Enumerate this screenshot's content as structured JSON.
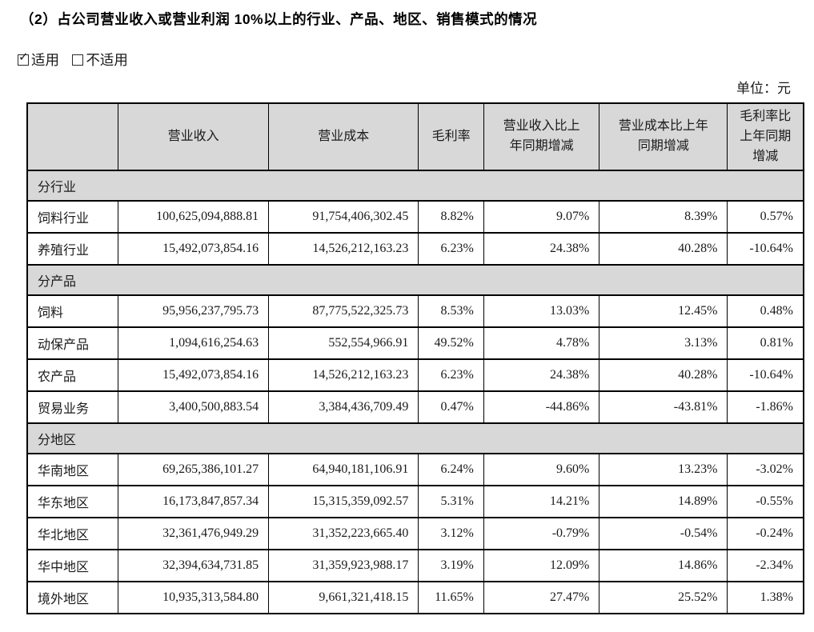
{
  "title": "（2）占公司营业收入或营业利润 10%以上的行业、产品、地区、销售模式的情况",
  "applicability": {
    "applicable_label": "适用",
    "not_applicable_label": "不适用",
    "applicable_checked": true,
    "check_glyph": "✓"
  },
  "unit_label": "单位：元",
  "table": {
    "columns": [
      "",
      "营业收入",
      "营业成本",
      "毛利率",
      "营业收入比上\n年同期增减",
      "营业成本比上年\n同期增减",
      "毛利率比\n上年同期\n增减"
    ],
    "sections": [
      {
        "label": "分行业",
        "rows": [
          {
            "label": "饲料行业",
            "values": [
              "100,625,094,888.81",
              "91,754,406,302.45",
              "8.82%",
              "9.07%",
              "8.39%",
              "0.57%"
            ]
          },
          {
            "label": "养殖行业",
            "values": [
              "15,492,073,854.16",
              "14,526,212,163.23",
              "6.23%",
              "24.38%",
              "40.28%",
              "-10.64%"
            ]
          }
        ]
      },
      {
        "label": "分产品",
        "rows": [
          {
            "label": "饲料",
            "values": [
              "95,956,237,795.73",
              "87,775,522,325.73",
              "8.53%",
              "13.03%",
              "12.45%",
              "0.48%"
            ]
          },
          {
            "label": "动保产品",
            "values": [
              "1,094,616,254.63",
              "552,554,966.91",
              "49.52%",
              "4.78%",
              "3.13%",
              "0.81%"
            ]
          },
          {
            "label": "农产品",
            "values": [
              "15,492,073,854.16",
              "14,526,212,163.23",
              "6.23%",
              "24.38%",
              "40.28%",
              "-10.64%"
            ]
          },
          {
            "label": "贸易业务",
            "values": [
              "3,400,500,883.54",
              "3,384,436,709.49",
              "0.47%",
              "-44.86%",
              "-43.81%",
              "-1.86%"
            ]
          }
        ]
      },
      {
        "label": "分地区",
        "rows": [
          {
            "label": "华南地区",
            "values": [
              "69,265,386,101.27",
              "64,940,181,106.91",
              "6.24%",
              "9.60%",
              "13.23%",
              "-3.02%"
            ]
          },
          {
            "label": "华东地区",
            "values": [
              "16,173,847,857.34",
              "15,315,359,092.57",
              "5.31%",
              "14.21%",
              "14.89%",
              "-0.55%"
            ]
          },
          {
            "label": "华北地区",
            "values": [
              "32,361,476,949.29",
              "31,352,223,665.40",
              "3.12%",
              "-0.79%",
              "-0.54%",
              "-0.24%"
            ]
          },
          {
            "label": "华中地区",
            "values": [
              "32,394,634,731.85",
              "31,359,923,988.17",
              "3.19%",
              "12.09%",
              "14.86%",
              "-2.34%"
            ]
          },
          {
            "label": "境外地区",
            "values": [
              "10,935,313,584.80",
              "9,661,321,418.15",
              "11.65%",
              "27.47%",
              "25.52%",
              "1.38%"
            ]
          }
        ]
      }
    ]
  },
  "colors": {
    "header_bg": "#d8d8d8",
    "border": "#000000",
    "text": "#1a1a1a"
  }
}
